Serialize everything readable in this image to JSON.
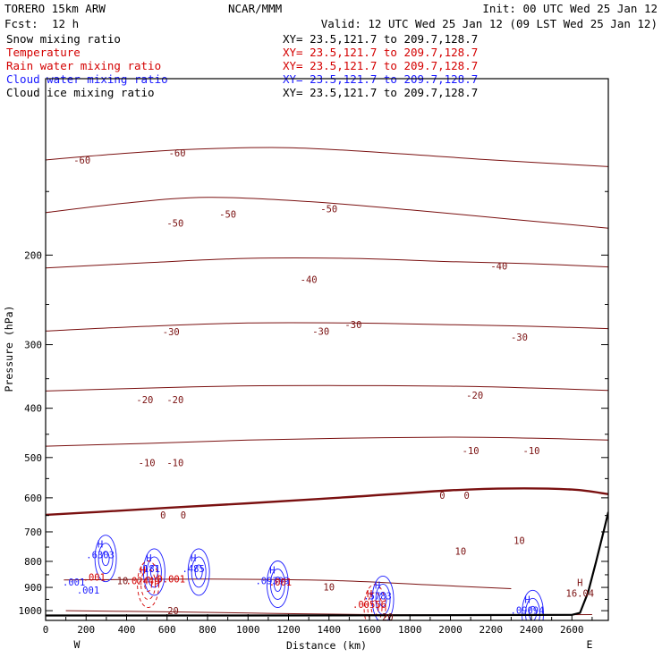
{
  "header": {
    "model": "TORERO  15km ARW",
    "center": "NCAR/MMM",
    "init": "Init: 00 UTC Wed 25 Jan 12",
    "fcst_label": "Fcst:",
    "fcst_value": "12 h",
    "valid": "Valid: 12 UTC Wed 25 Jan 12 (09 LST Wed 25 Jan 12)"
  },
  "fields": [
    {
      "name": "Snow mixing ratio",
      "xy": "XY=  23.5,121.7 to 209.7,128.7",
      "color": "#000000"
    },
    {
      "name": "Temperature",
      "xy": "XY=  23.5,121.7 to 209.7,128.7",
      "color": "#d40000"
    },
    {
      "name": "Rain water mixing ratio",
      "xy": "XY=  23.5,121.7 to 209.7,128.7",
      "color": "#d40000"
    },
    {
      "name": "Cloud water mixing ratio",
      "xy": "XY=  23.5,121.7 to 209.7,128.7",
      "color": "#1a1aff"
    },
    {
      "name": "Cloud ice mixing ratio",
      "xy": "XY=  23.5,121.7 to 209.7,128.7",
      "color": "#000000"
    }
  ],
  "colors": {
    "temperature": "#7a1010",
    "zero_isotherm": "#7a1010",
    "rain": "#d40000",
    "cloud_water": "#1a1aff",
    "terrain": "#000000",
    "header_blue": "#1a1aff"
  },
  "chart_data": {
    "type": "line",
    "xlabel": "Distance (km)",
    "ylabel": "Pressure (hPa)",
    "xlim": [
      0,
      2780
    ],
    "ylim": [
      1045,
      90
    ],
    "y_scale": "log",
    "x_ticks": [
      0,
      200,
      400,
      600,
      800,
      1000,
      1200,
      1400,
      1600,
      1800,
      2000,
      2200,
      2400,
      2600
    ],
    "y_ticks": [
      200,
      300,
      400,
      500,
      600,
      700,
      800,
      900,
      1000
    ],
    "x_end_labels": {
      "left": "W",
      "right": "E"
    },
    "isotherms": [
      {
        "t": -60,
        "points": [
          [
            0,
            130
          ],
          [
            300,
            127
          ],
          [
            700,
            124
          ],
          [
            1200,
            123
          ],
          [
            1700,
            126
          ],
          [
            2200,
            130
          ],
          [
            2780,
            134
          ]
        ]
      },
      {
        "t": -50,
        "points": [
          [
            0,
            165
          ],
          [
            400,
            158
          ],
          [
            800,
            154
          ],
          [
            1300,
            157
          ],
          [
            1800,
            163
          ],
          [
            2300,
            170
          ],
          [
            2780,
            177
          ]
        ]
      },
      {
        "t": -40,
        "points": [
          [
            0,
            212
          ],
          [
            500,
            207
          ],
          [
            1000,
            203
          ],
          [
            1500,
            203
          ],
          [
            2000,
            206
          ],
          [
            2400,
            208
          ],
          [
            2780,
            211
          ]
        ]
      },
      {
        "t": -30,
        "points": [
          [
            0,
            282
          ],
          [
            500,
            276
          ],
          [
            1000,
            272
          ],
          [
            1500,
            272
          ],
          [
            2000,
            274
          ],
          [
            2400,
            276
          ],
          [
            2780,
            279
          ]
        ]
      },
      {
        "t": -20,
        "points": [
          [
            0,
            370
          ],
          [
            400,
            366
          ],
          [
            900,
            362
          ],
          [
            1400,
            361
          ],
          [
            2000,
            362
          ],
          [
            2400,
            365
          ],
          [
            2780,
            369
          ]
        ]
      },
      {
        "t": -10,
        "points": [
          [
            0,
            475
          ],
          [
            500,
            469
          ],
          [
            1000,
            462
          ],
          [
            1500,
            458
          ],
          [
            2000,
            456
          ],
          [
            2400,
            458
          ],
          [
            2780,
            462
          ]
        ]
      },
      {
        "t": 0,
        "points": [
          [
            0,
            648
          ],
          [
            250,
            640
          ],
          [
            600,
            628
          ],
          [
            1000,
            615
          ],
          [
            1500,
            598
          ],
          [
            2000,
            580
          ],
          [
            2300,
            575
          ],
          [
            2600,
            578
          ],
          [
            2780,
            590
          ]
        ]
      },
      {
        "t": 10,
        "points": [
          [
            90,
            870
          ],
          [
            800,
            867
          ],
          [
            1400,
            872
          ],
          [
            1900,
            890
          ],
          [
            2300,
            905
          ]
        ]
      },
      {
        "t": 20,
        "points": [
          [
            100,
            1000
          ],
          [
            600,
            1005
          ],
          [
            1100,
            1012
          ],
          [
            1600,
            1018
          ],
          [
            2100,
            1020
          ],
          [
            2700,
            1018
          ]
        ]
      }
    ],
    "isotherm_labels": [
      {
        "text": "-60",
        "x": 180,
        "p": 130
      },
      {
        "text": "-60",
        "x": 650,
        "p": 126
      },
      {
        "text": "-50",
        "x": 640,
        "p": 173
      },
      {
        "text": "-50",
        "x": 900,
        "p": 166
      },
      {
        "text": "-50",
        "x": 1400,
        "p": 162
      },
      {
        "text": "-40",
        "x": 1300,
        "p": 223
      },
      {
        "text": "-40",
        "x": 2240,
        "p": 210
      },
      {
        "text": "-30",
        "x": 620,
        "p": 283
      },
      {
        "text": "-30",
        "x": 1360,
        "p": 282
      },
      {
        "text": "-30",
        "x": 1520,
        "p": 274
      },
      {
        "text": "-30",
        "x": 2340,
        "p": 290
      },
      {
        "text": "-20",
        "x": 490,
        "p": 385
      },
      {
        "text": "-20",
        "x": 640,
        "p": 385
      },
      {
        "text": "-20",
        "x": 2120,
        "p": 377
      },
      {
        "text": "-10",
        "x": 500,
        "p": 512
      },
      {
        "text": "-10",
        "x": 640,
        "p": 512
      },
      {
        "text": "-10",
        "x": 2100,
        "p": 484
      },
      {
        "text": "-10",
        "x": 2400,
        "p": 484
      },
      {
        "text": "0",
        "x": 580,
        "p": 648
      },
      {
        "text": "0",
        "x": 680,
        "p": 648
      },
      {
        "text": "0",
        "x": 1960,
        "p": 593
      },
      {
        "text": "0",
        "x": 2080,
        "p": 593
      },
      {
        "text": "10",
        "x": 380,
        "p": 872
      },
      {
        "text": "10",
        "x": 1400,
        "p": 898
      },
      {
        "text": "10",
        "x": 2050,
        "p": 763
      },
      {
        "text": "10",
        "x": 2340,
        "p": 728
      },
      {
        "text": "20",
        "x": 630,
        "p": 1000
      },
      {
        "text": "20",
        "x": 1690,
        "p": 1029
      }
    ],
    "extrema_labels": [
      {
        "mark": "H",
        "value": ".6303",
        "x": 270,
        "p": 752,
        "color": "#1a1aff"
      },
      {
        "mark": "H",
        "value": ".181",
        "x": 510,
        "p": 800,
        "color": "#1a1aff"
      },
      {
        "mark": "H",
        "value": ".02449",
        "x": 480,
        "p": 845,
        "color": "#d40000"
      },
      {
        "mark": "H",
        "value": ".485",
        "x": 730,
        "p": 800,
        "color": "#1a1aff"
      },
      {
        "mark": "H",
        "value": ".09399",
        "x": 1120,
        "p": 845,
        "color": "#1a1aff"
      },
      {
        "mark": "H",
        "value": ".5783",
        "x": 1640,
        "p": 905,
        "color": "#1a1aff"
      },
      {
        "mark": "H",
        "value": ".00556",
        "x": 1600,
        "p": 940,
        "color": "#d40000"
      },
      {
        "mark": "H",
        "value": "16.04",
        "x": 2640,
        "p": 895,
        "color": "#7a1010"
      },
      {
        "mark": "H",
        "value": ".09094",
        "x": 2380,
        "p": 965,
        "color": "#1a1aff"
      },
      {
        "mark": "",
        "value": ".001",
        "x": 140,
        "p": 892,
        "color": "#1a1aff"
      },
      {
        "mark": "",
        "value": ".001",
        "x": 210,
        "p": 925,
        "color": "#1a1aff"
      },
      {
        "mark": "",
        "value": ".001",
        "x": 1160,
        "p": 892,
        "color": "#d40000"
      },
      {
        "mark": "",
        "value": "0.001",
        "x": 620,
        "p": 880,
        "color": "#d40000"
      },
      {
        "mark": "",
        "value": ".001",
        "x": 240,
        "p": 873,
        "color": "#d40000"
      }
    ],
    "terrain": [
      [
        0,
        1022
      ],
      [
        400,
        1022
      ],
      [
        1000,
        1022
      ],
      [
        1600,
        1021
      ],
      [
        2200,
        1020
      ],
      [
        2600,
        1019
      ],
      [
        2640,
        1010
      ],
      [
        2680,
        920
      ],
      [
        2720,
        800
      ],
      [
        2760,
        690
      ],
      [
        2780,
        640
      ]
    ]
  }
}
